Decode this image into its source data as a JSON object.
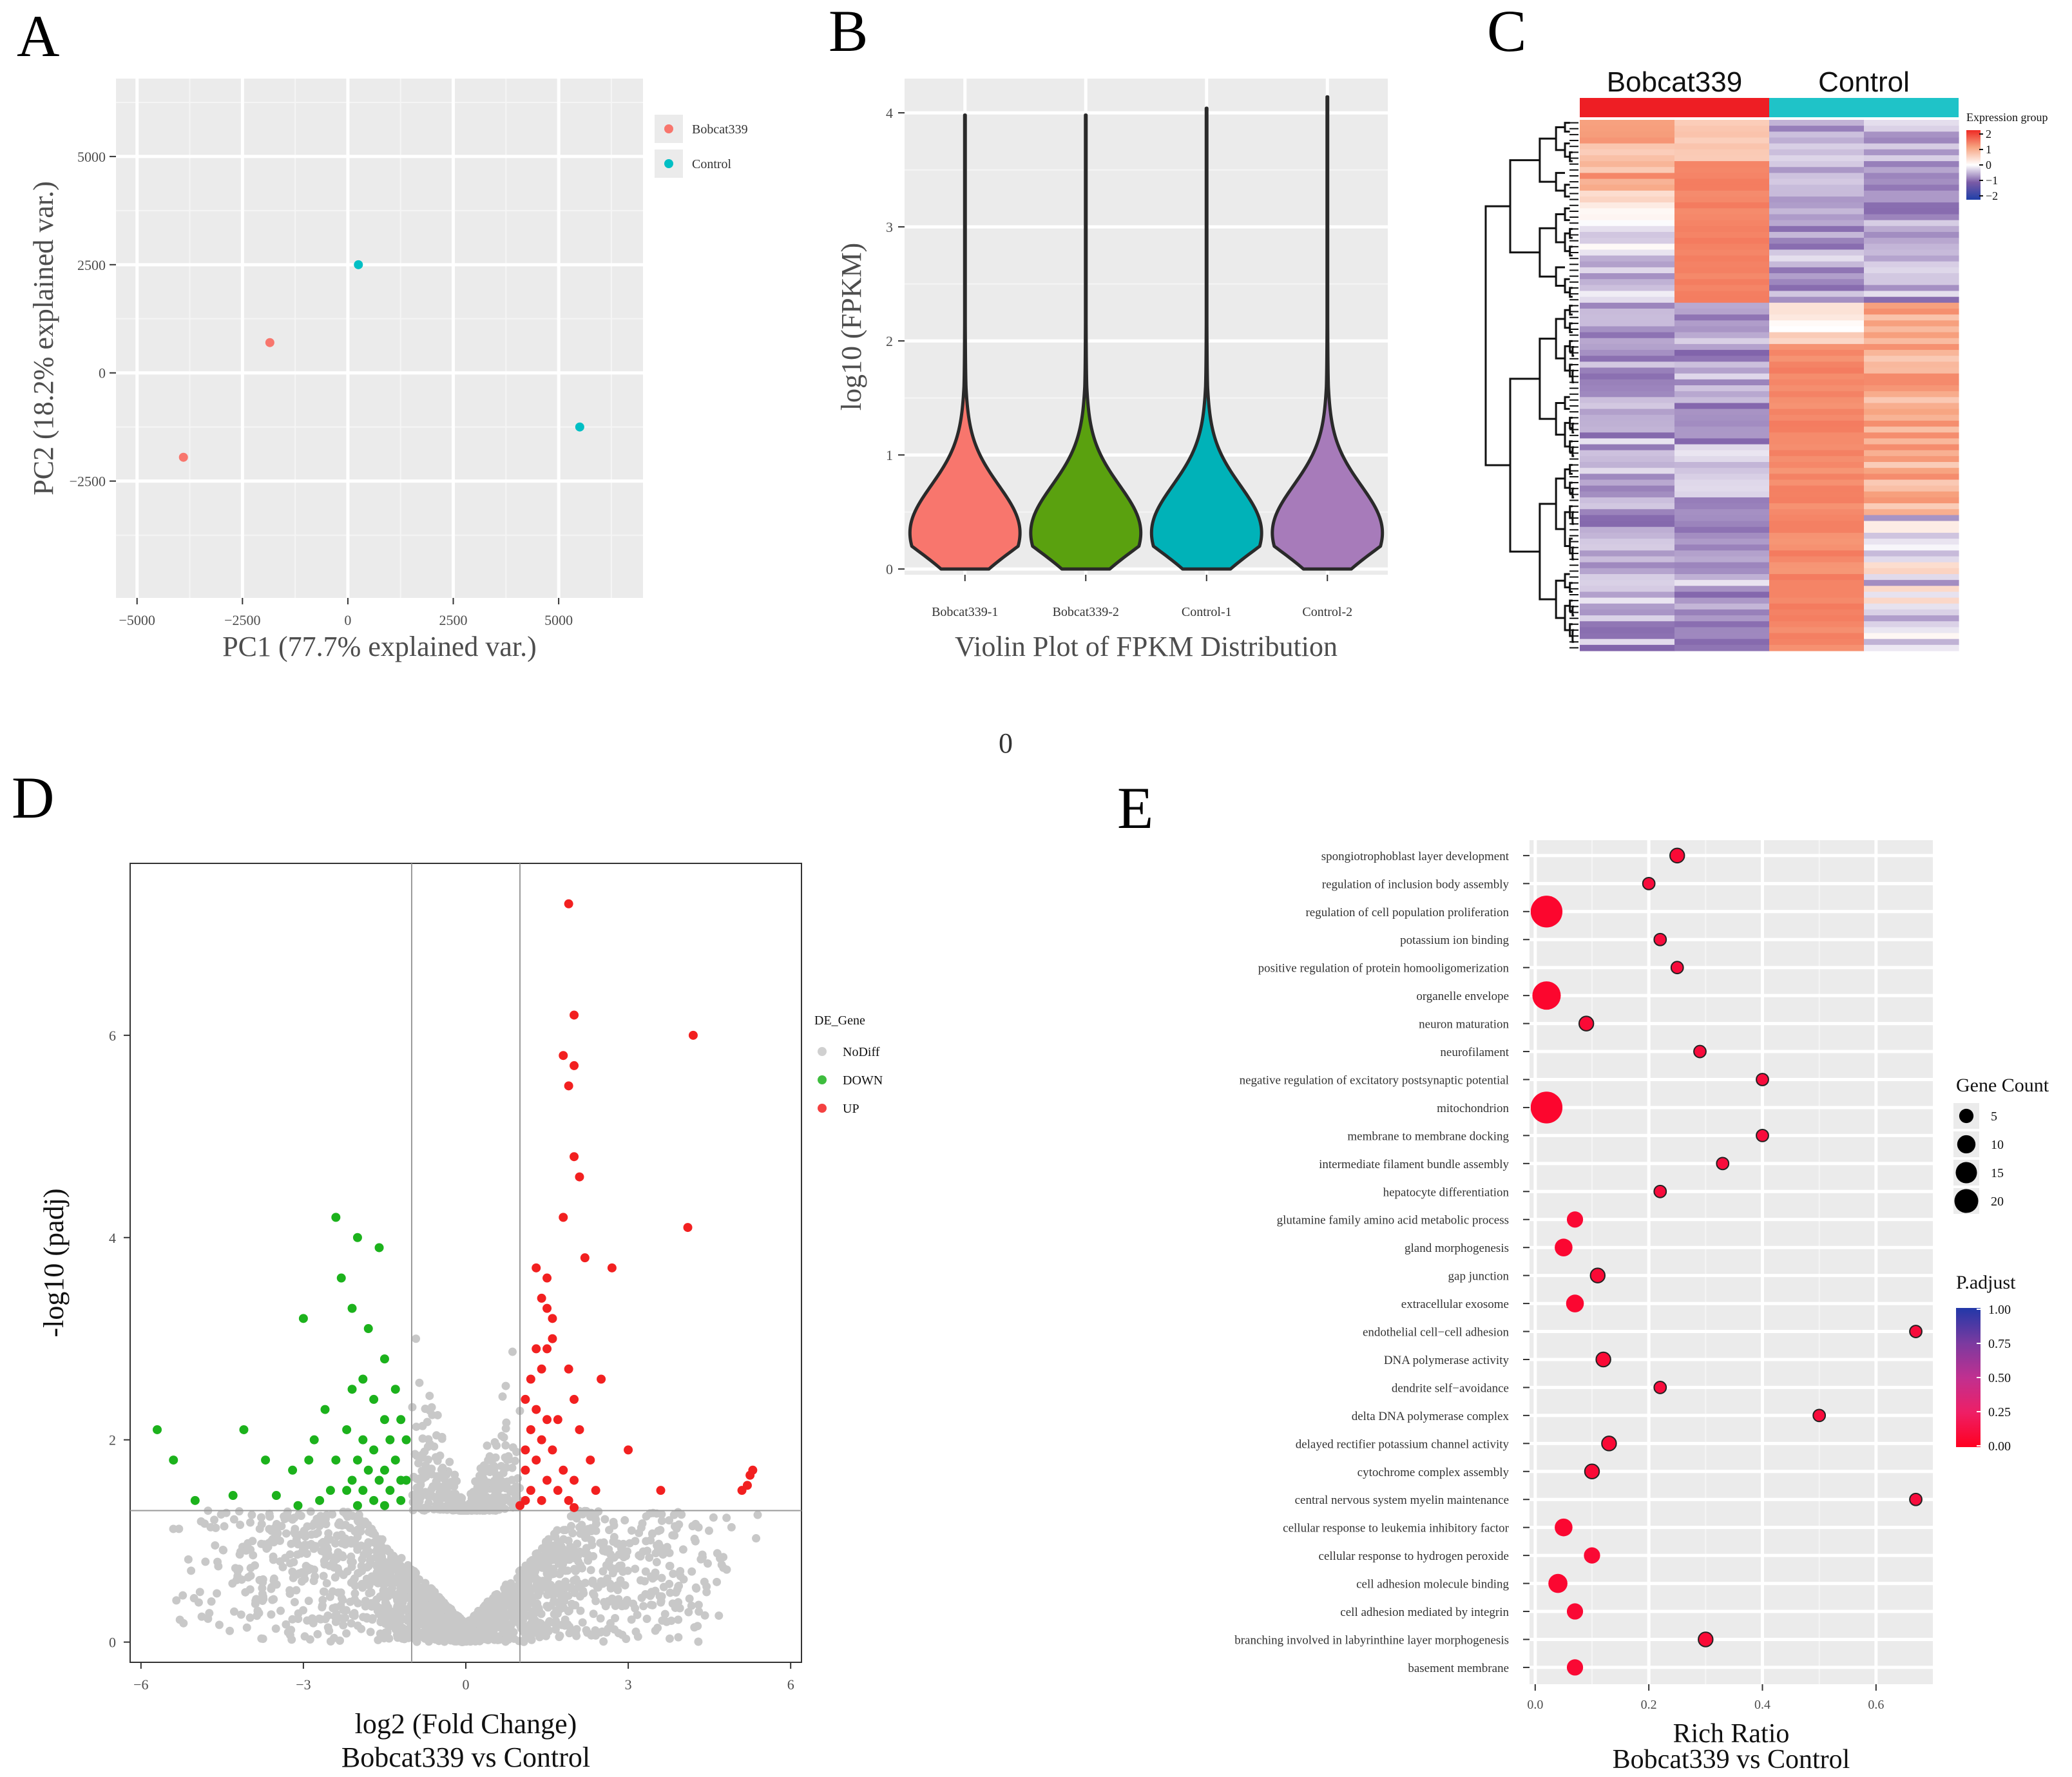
{
  "figure": {
    "panel_labels": [
      "A",
      "B",
      "C",
      "D",
      "E"
    ],
    "stray_label": "0"
  },
  "chart_data": [
    {
      "panel": "A",
      "type": "scatter",
      "title": "",
      "xlabel": "PC1 (77.7% explained var.)",
      "ylabel": "PC2 (18.2% explained var.)",
      "xlim": [
        -5500,
        7000
      ],
      "ylim": [
        -5200,
        6800
      ],
      "xticks": [
        -5000,
        -2500,
        0,
        2500,
        5000
      ],
      "xtick_labels": [
        "−5000",
        "−2500",
        "0",
        "2500",
        "5000"
      ],
      "yticks": [
        -2500,
        0,
        2500,
        5000
      ],
      "ytick_labels": [
        "−2500",
        "0",
        "2500",
        "5000"
      ],
      "legend": [
        {
          "name": "Bobcat339",
          "color": "#F8766D"
        },
        {
          "name": "Control",
          "color": "#00BFC4"
        }
      ],
      "points": [
        {
          "group": "Bobcat339",
          "x": -3900,
          "y": -1950
        },
        {
          "group": "Bobcat339",
          "x": -1850,
          "y": 700
        },
        {
          "group": "Control",
          "x": 250,
          "y": 2500
        },
        {
          "group": "Control",
          "x": 5500,
          "y": -1250
        }
      ]
    },
    {
      "panel": "B",
      "type": "violin",
      "title": "Violin Plot of FPKM Distribution",
      "xlabel": "Violin Plot of FPKM Distribution",
      "ylabel": "log10 (FPKM)",
      "ylim": [
        -0.05,
        4.3
      ],
      "yticks": [
        0,
        1,
        2,
        3,
        4
      ],
      "categories": [
        "Bobcat339-1",
        "Bobcat339-2",
        "Control-1",
        "Control-2"
      ],
      "colors": [
        "#F8766D",
        "#5AA10F",
        "#00B2B8",
        "#A77BBA"
      ],
      "max_values": [
        4.0,
        4.0,
        4.05,
        4.15
      ],
      "max_widths": [
        0.44,
        0.44,
        0.44,
        0.44
      ]
    },
    {
      "panel": "C",
      "type": "heatmap",
      "groups": [
        {
          "name": "Bobcat339",
          "color": "#EE1E24"
        },
        {
          "name": "Control",
          "color": "#1FC3C8"
        }
      ],
      "legend_title": "Expression group",
      "legend_ticks": [
        "2",
        "1",
        "0",
        "−1",
        "−2"
      ],
      "columns": 4,
      "rows": 90
    },
    {
      "panel": "D",
      "type": "scatter",
      "title": "",
      "xlabel": "log2 (Fold Change)",
      "xlabel2": "Bobcat339 vs Control",
      "ylabel": "-log10 (padj)",
      "xlim": [
        -6.2,
        6.2
      ],
      "ylim": [
        -0.2,
        7.7
      ],
      "xticks": [
        -6,
        -3,
        0,
        3,
        6
      ],
      "xtick_labels": [
        "−6",
        "−3",
        "0",
        "3",
        "6"
      ],
      "yticks": [
        0,
        2,
        4,
        6
      ],
      "thresholds": {
        "x": [
          -1,
          1
        ],
        "y": 1.3
      },
      "legend_title": "DE_Gene",
      "legend": [
        {
          "name": "NoDiff",
          "color": "#C8C8C8"
        },
        {
          "name": "DOWN",
          "color": "#1CB21C"
        },
        {
          "name": "UP",
          "color": "#F22020"
        }
      ],
      "points_up": [
        [
          1.9,
          7.3
        ],
        [
          2.0,
          6.2
        ],
        [
          4.2,
          6.0
        ],
        [
          1.8,
          5.8
        ],
        [
          2.0,
          5.7
        ],
        [
          1.9,
          5.5
        ],
        [
          2.0,
          4.8
        ],
        [
          2.1,
          4.6
        ],
        [
          4.1,
          4.1
        ],
        [
          1.8,
          4.2
        ],
        [
          2.2,
          3.8
        ],
        [
          1.3,
          3.7
        ],
        [
          1.5,
          3.6
        ],
        [
          2.7,
          3.7
        ],
        [
          1.4,
          3.4
        ],
        [
          1.5,
          3.3
        ],
        [
          1.6,
          3.2
        ],
        [
          1.6,
          3.0
        ],
        [
          1.5,
          2.9
        ],
        [
          1.3,
          2.9
        ],
        [
          1.4,
          2.7
        ],
        [
          1.2,
          2.6
        ],
        [
          2.5,
          2.6
        ],
        [
          1.9,
          2.7
        ],
        [
          1.1,
          2.4
        ],
        [
          1.3,
          2.3
        ],
        [
          1.5,
          2.2
        ],
        [
          1.7,
          2.2
        ],
        [
          2.0,
          2.4
        ],
        [
          1.2,
          2.1
        ],
        [
          1.4,
          2.0
        ],
        [
          2.1,
          2.1
        ],
        [
          1.1,
          1.9
        ],
        [
          1.6,
          1.9
        ],
        [
          1.3,
          1.8
        ],
        [
          1.8,
          1.7
        ],
        [
          2.3,
          1.8
        ],
        [
          1.1,
          1.7
        ],
        [
          1.5,
          1.6
        ],
        [
          2.0,
          1.6
        ],
        [
          3.0,
          1.9
        ],
        [
          1.2,
          1.5
        ],
        [
          1.7,
          1.5
        ],
        [
          2.4,
          1.5
        ],
        [
          3.6,
          1.5
        ],
        [
          1.1,
          1.4
        ],
        [
          1.4,
          1.4
        ],
        [
          1.9,
          1.4
        ],
        [
          1.0,
          1.35
        ],
        [
          2.0,
          1.33
        ],
        [
          5.1,
          1.5
        ],
        [
          5.2,
          1.55
        ],
        [
          5.25,
          1.65
        ],
        [
          5.3,
          1.7
        ]
      ],
      "points_down": [
        [
          -2.4,
          4.2
        ],
        [
          -2.0,
          4.0
        ],
        [
          -1.6,
          3.9
        ],
        [
          -2.3,
          3.6
        ],
        [
          -2.1,
          3.3
        ],
        [
          -3.0,
          3.2
        ],
        [
          -1.8,
          3.1
        ],
        [
          -1.5,
          2.8
        ],
        [
          -1.9,
          2.6
        ],
        [
          -2.1,
          2.5
        ],
        [
          -1.3,
          2.5
        ],
        [
          -1.7,
          2.4
        ],
        [
          -2.6,
          2.3
        ],
        [
          -1.2,
          2.2
        ],
        [
          -1.5,
          2.2
        ],
        [
          -2.2,
          2.1
        ],
        [
          -1.9,
          2.0
        ],
        [
          -1.4,
          2.0
        ],
        [
          -2.8,
          2.0
        ],
        [
          -1.1,
          2.0
        ],
        [
          -1.7,
          1.9
        ],
        [
          -2.0,
          1.8
        ],
        [
          -1.3,
          1.8
        ],
        [
          -2.4,
          1.8
        ],
        [
          -1.5,
          1.7
        ],
        [
          -1.8,
          1.7
        ],
        [
          -2.9,
          1.8
        ],
        [
          -1.2,
          1.6
        ],
        [
          -2.1,
          1.6
        ],
        [
          -1.6,
          1.6
        ],
        [
          -1.1,
          1.6
        ],
        [
          -3.2,
          1.7
        ],
        [
          -2.5,
          1.5
        ],
        [
          -1.9,
          1.5
        ],
        [
          -1.4,
          1.5
        ],
        [
          -2.2,
          1.5
        ],
        [
          -1.7,
          1.4
        ],
        [
          -1.2,
          1.4
        ],
        [
          -2.7,
          1.4
        ],
        [
          -3.5,
          1.45
        ],
        [
          -1.5,
          1.35
        ],
        [
          -2.0,
          1.35
        ],
        [
          -5.7,
          2.1
        ],
        [
          -5.4,
          1.8
        ],
        [
          -4.1,
          2.1
        ],
        [
          -3.7,
          1.8
        ],
        [
          -5.0,
          1.4
        ],
        [
          -4.3,
          1.45
        ],
        [
          -3.1,
          1.35
        ]
      ]
    },
    {
      "panel": "E",
      "type": "scatter",
      "title": "",
      "xlabel": "Rich Ratio",
      "xlabel2": "Bobcat339 vs Control",
      "xlim": [
        -0.01,
        0.7
      ],
      "xticks": [
        0.0,
        0.2,
        0.4,
        0.6
      ],
      "xtick_labels": [
        "0.0",
        "0.2",
        "0.4",
        "0.6"
      ],
      "size_legend_title": "Gene Count",
      "size_legend": [
        5,
        10,
        15,
        20
      ],
      "color_legend_title": "P.adjust",
      "color_legend_ticks": [
        "1.00",
        "0.75",
        "0.50",
        "0.25",
        "0.00"
      ],
      "terms": [
        {
          "term": "spongiotrophoblast layer development",
          "ratio": 0.25,
          "count": 2,
          "padj": 0.08
        },
        {
          "term": "regulation of inclusion body assembly",
          "ratio": 0.2,
          "count": 1,
          "padj": 0.1
        },
        {
          "term": "regulation of cell population proliferation",
          "ratio": 0.02,
          "count": 20,
          "padj": 0.05
        },
        {
          "term": "potassium ion binding",
          "ratio": 0.22,
          "count": 1,
          "padj": 0.1
        },
        {
          "term": "positive regulation of protein homooligomerization",
          "ratio": 0.25,
          "count": 1,
          "padj": 0.1
        },
        {
          "term": "organelle envelope",
          "ratio": 0.02,
          "count": 15,
          "padj": 0.05
        },
        {
          "term": "neuron maturation",
          "ratio": 0.09,
          "count": 2,
          "padj": 0.08
        },
        {
          "term": "neurofilament",
          "ratio": 0.29,
          "count": 1,
          "padj": 0.1
        },
        {
          "term": "negative regulation of excitatory postsynaptic potential",
          "ratio": 0.4,
          "count": 1,
          "padj": 0.1
        },
        {
          "term": "mitochondrion",
          "ratio": 0.02,
          "count": 20,
          "padj": 0.05
        },
        {
          "term": "membrane to membrane docking",
          "ratio": 0.4,
          "count": 1,
          "padj": 0.1
        },
        {
          "term": "intermediate filament bundle assembly",
          "ratio": 0.33,
          "count": 1,
          "padj": 0.1
        },
        {
          "term": "hepatocyte differentiation",
          "ratio": 0.22,
          "count": 1,
          "padj": 0.1
        },
        {
          "term": "glutamine family amino acid metabolic process",
          "ratio": 0.07,
          "count": 3,
          "padj": 0.07
        },
        {
          "term": "gland morphogenesis",
          "ratio": 0.05,
          "count": 4,
          "padj": 0.06
        },
        {
          "term": "gap junction",
          "ratio": 0.11,
          "count": 2,
          "padj": 0.08
        },
        {
          "term": "extracellular exosome",
          "ratio": 0.07,
          "count": 4,
          "padj": 0.06
        },
        {
          "term": "endothelial cell−cell adhesion",
          "ratio": 0.67,
          "count": 1,
          "padj": 0.1
        },
        {
          "term": "DNA polymerase activity",
          "ratio": 0.12,
          "count": 2,
          "padj": 0.08
        },
        {
          "term": "dendrite self−avoidance",
          "ratio": 0.22,
          "count": 1,
          "padj": 0.1
        },
        {
          "term": "delta DNA polymerase complex",
          "ratio": 0.5,
          "count": 1,
          "padj": 0.1
        },
        {
          "term": "delayed rectifier potassium channel activity",
          "ratio": 0.13,
          "count": 2,
          "padj": 0.08
        },
        {
          "term": "cytochrome complex assembly",
          "ratio": 0.1,
          "count": 2,
          "padj": 0.08
        },
        {
          "term": "central nervous system myelin maintenance",
          "ratio": 0.67,
          "count": 1,
          "padj": 0.1
        },
        {
          "term": "cellular response to leukemia inhibitory factor",
          "ratio": 0.05,
          "count": 4,
          "padj": 0.06
        },
        {
          "term": "cellular response to hydrogen peroxide",
          "ratio": 0.1,
          "count": 3,
          "padj": 0.07
        },
        {
          "term": "cell adhesion molecule binding",
          "ratio": 0.04,
          "count": 5,
          "padj": 0.06
        },
        {
          "term": "cell adhesion mediated by integrin",
          "ratio": 0.07,
          "count": 3,
          "padj": 0.07
        },
        {
          "term": "branching involved in labyrinthine layer morphogenesis",
          "ratio": 0.3,
          "count": 2,
          "padj": 0.08
        },
        {
          "term": "basement membrane",
          "ratio": 0.07,
          "count": 3,
          "padj": 0.07
        }
      ]
    }
  ]
}
